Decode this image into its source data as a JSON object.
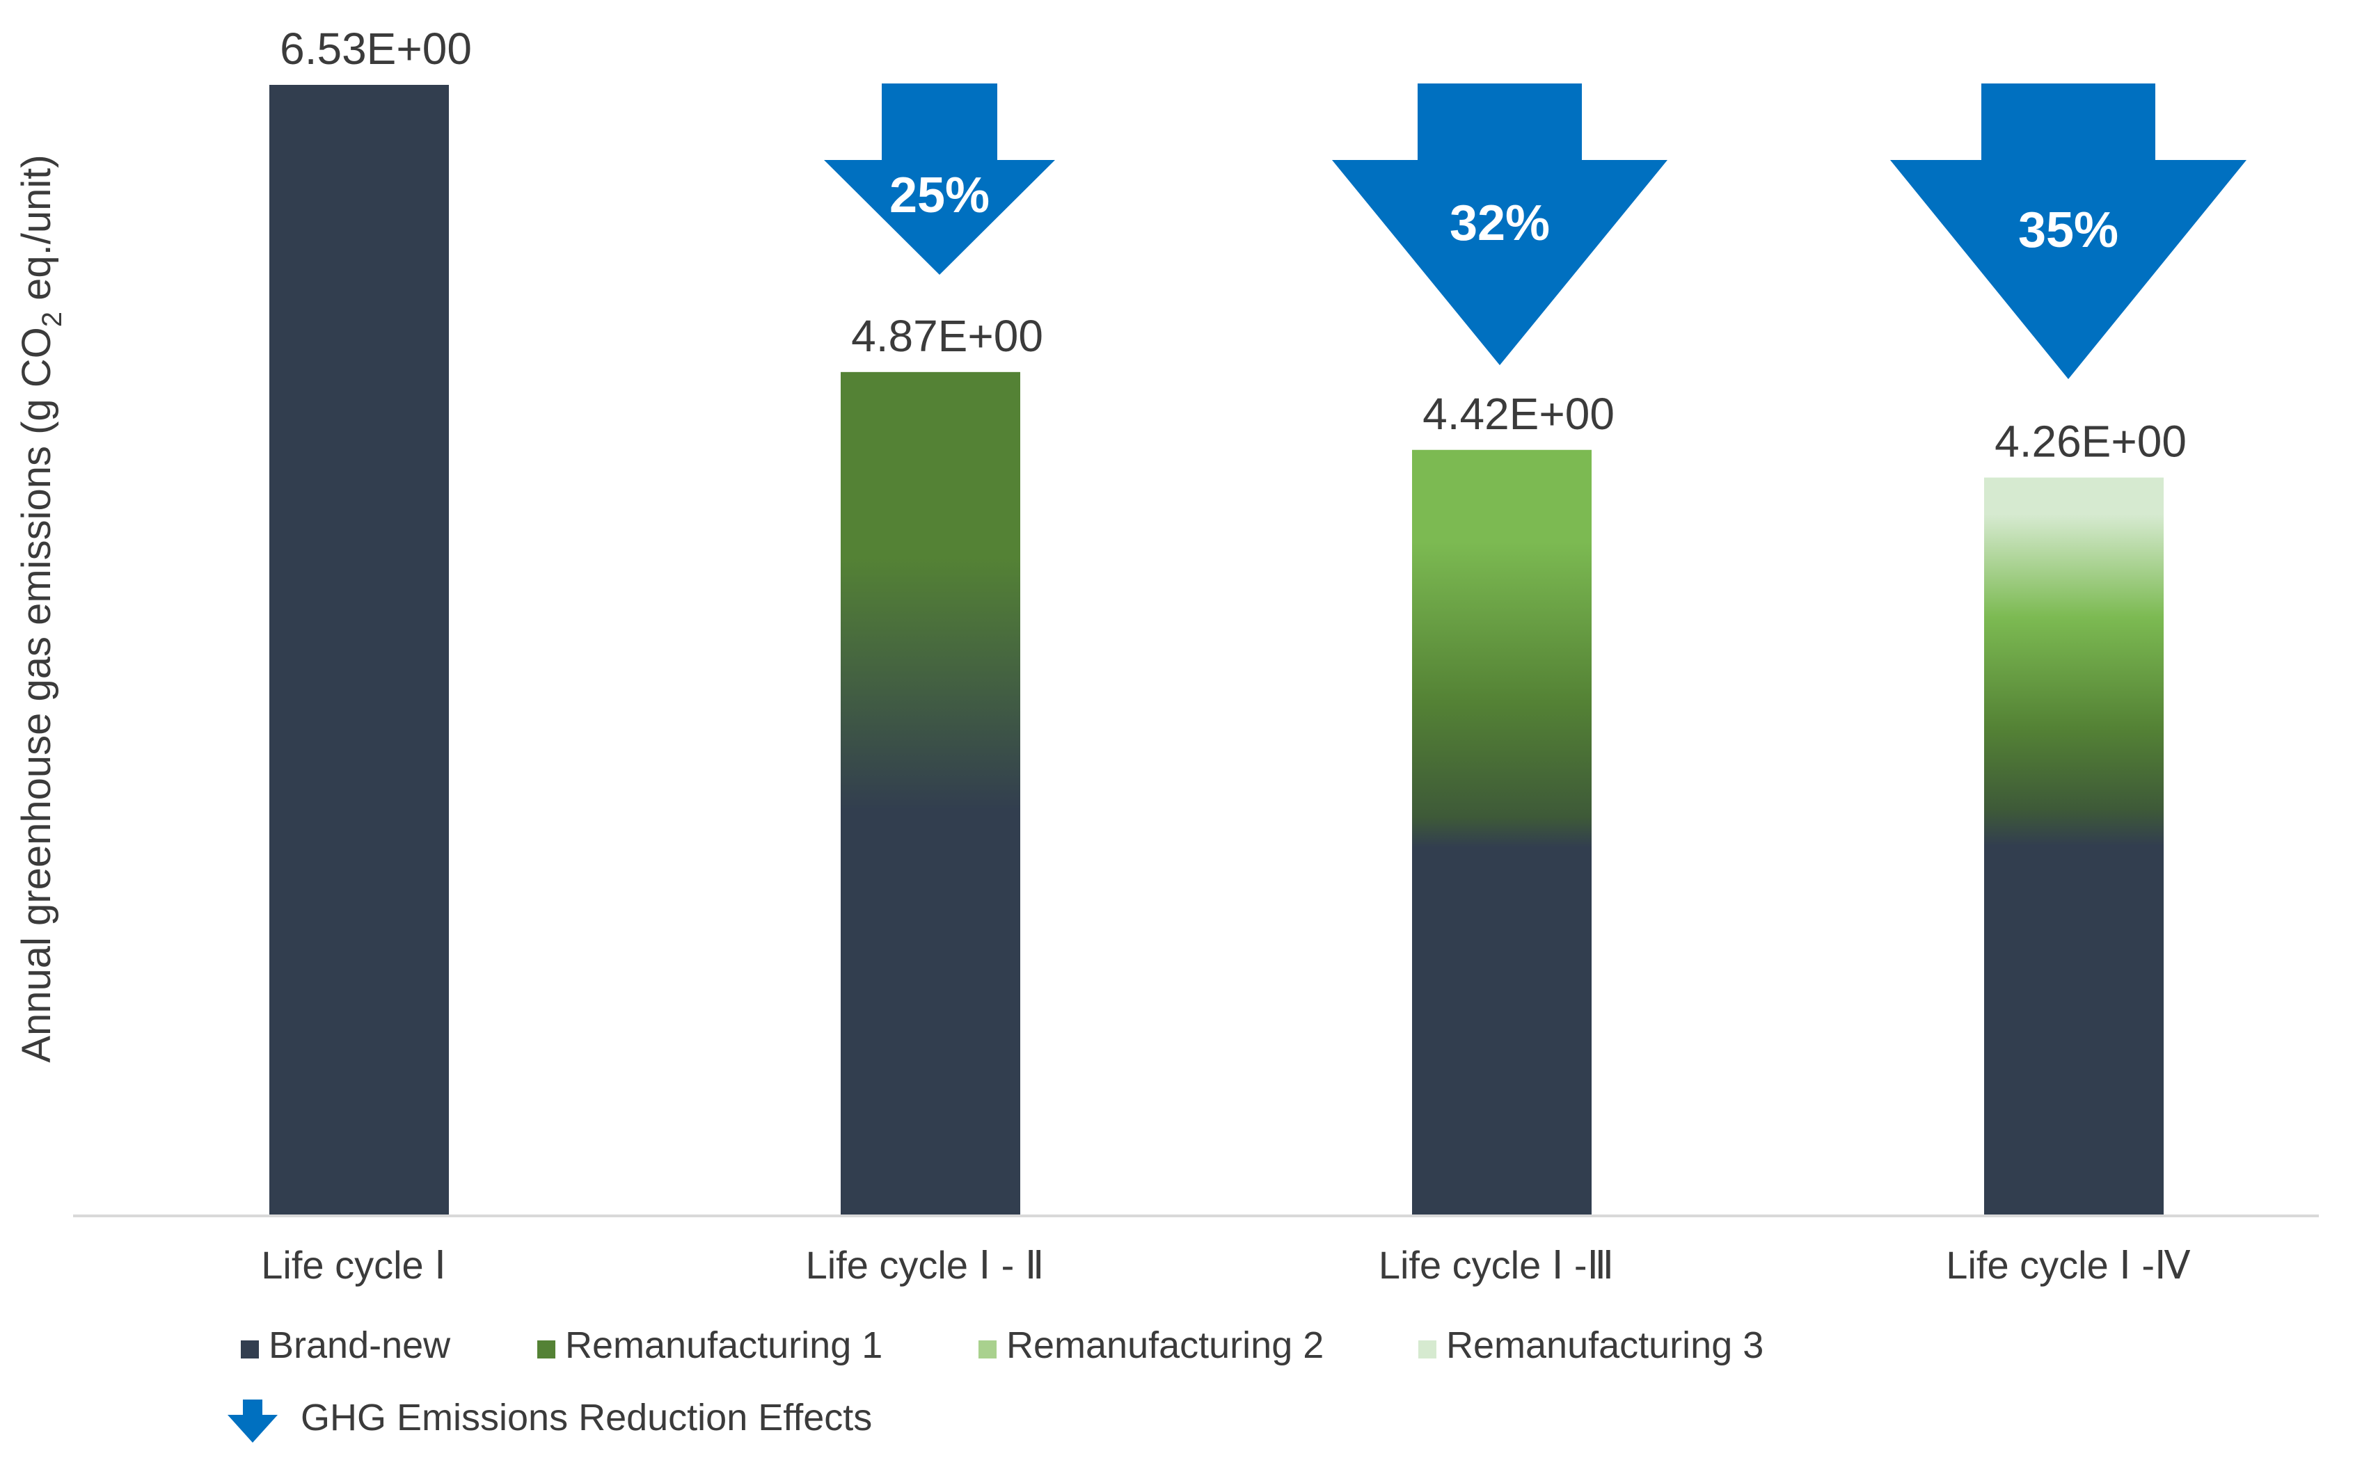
{
  "chart_data": {
    "type": "bar",
    "title": "",
    "ylabel_parts": [
      "Annual greenhouse gas emissions (g CO",
      "2",
      " eq./unit)"
    ],
    "categories": [
      "Life cycle Ⅰ",
      "Life cycle Ⅰ - Ⅱ",
      "Life cycle Ⅰ -Ⅲ",
      "Life cycle Ⅰ -Ⅳ"
    ],
    "values": [
      6.53,
      4.87,
      4.42,
      4.26
    ],
    "value_labels": [
      "6.53E+00",
      "4.87E+00",
      "4.42E+00",
      "4.26E+00"
    ],
    "ylim": [
      0,
      6.53
    ],
    "reductions": [
      null,
      "25%",
      "32%",
      "35%"
    ],
    "legend": [
      {
        "label": "Brand-new",
        "color": "#323e4f"
      },
      {
        "label": "Remanufacturing 1",
        "color": "#548235"
      },
      {
        "label": "Remanufacturing 2",
        "color": "#a9d18e"
      },
      {
        "label": "Remanufacturing 3",
        "color": "#d6ead0"
      }
    ],
    "reduction_legend": {
      "label": "GHG Emissions Reduction Effects",
      "color": "#0070c0"
    },
    "grid": false,
    "legend_position": "bottom-left"
  }
}
